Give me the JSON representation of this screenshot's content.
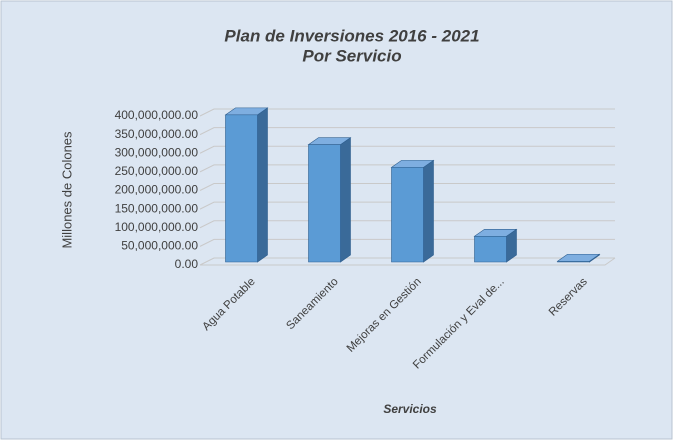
{
  "chart_data": {
    "type": "bar3d",
    "title": "Plan de Inversiones  2016 - 2021",
    "subtitle": "Por Servicio",
    "y_label": "Millones de Colones",
    "x_label": "Servicios",
    "categories": [
      "Agua Potable",
      "Saneamiento",
      "Mejoras en Gestión",
      "Formulación y Eval de...",
      "Reservas"
    ],
    "values": [
      395000000,
      315000000,
      254000000,
      69000000,
      2000000
    ],
    "color": "#5b9bd5",
    "ylim": [
      0,
      400000000
    ],
    "yticks": [
      {
        "value": 0,
        "label": "0.00"
      },
      {
        "value": 50000000,
        "label": "50,000,000.00"
      },
      {
        "value": 100000000,
        "label": "100,000,000.00"
      },
      {
        "value": 150000000,
        "label": "150,000,000.00"
      },
      {
        "value": 200000000,
        "label": "200,000,000.00"
      },
      {
        "value": 250000000,
        "label": "250,000,000.00"
      },
      {
        "value": 300000000,
        "label": "300,000,000.00"
      },
      {
        "value": 350000000,
        "label": "350,000,000.00"
      },
      {
        "value": 400000000,
        "label": "400,000,000.00"
      }
    ],
    "grid": true
  }
}
